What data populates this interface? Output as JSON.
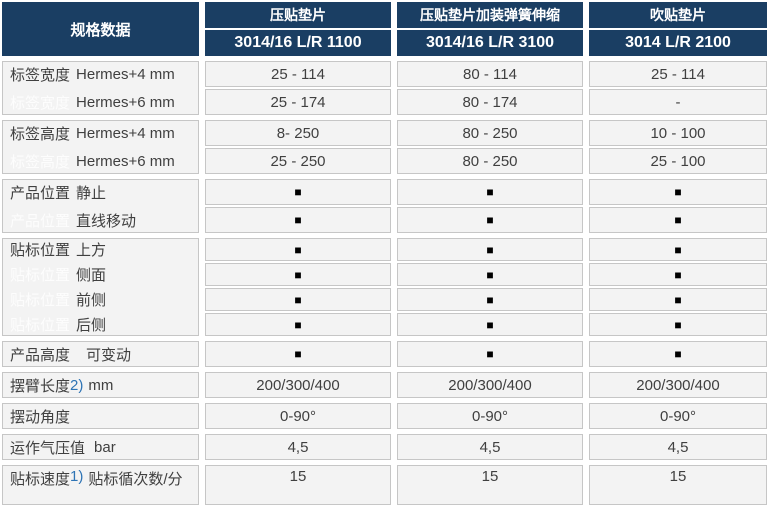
{
  "colors": {
    "header-bg": "#1a3e63",
    "cell-bg": "#f3f3f3",
    "cell-border": "#c6c6c6",
    "text": "#404040",
    "ghost": "#fdfdfd",
    "footnote": "#2e74b5",
    "square": "#000000"
  },
  "header": {
    "spec_label": "规格数据",
    "columns": [
      {
        "product": "压贴垫片",
        "model": "3014/16 L/R 1100"
      },
      {
        "product": "压贴垫片加装弹簧伸缩",
        "model": "3014/16 L/R 3100"
      },
      {
        "product": "吹贴垫片",
        "model": "3014 L/R 2100"
      }
    ]
  },
  "square_glyph": "■",
  "groups": [
    {
      "name": "label-width",
      "rows": [
        {
          "category": "标签宽度",
          "ghost": false,
          "rest": "Hermes+4 mm",
          "values": [
            "25 - 114",
            "80 - 114",
            "25 - 114"
          ]
        },
        {
          "category": "标签宽度",
          "ghost": true,
          "rest": "Hermes+6 mm",
          "values": [
            "25 - 174",
            "80 - 174",
            "-"
          ]
        }
      ]
    },
    {
      "name": "label-height",
      "rows": [
        {
          "category": "标签高度",
          "ghost": false,
          "rest": "Hermes+4 mm",
          "values": [
            "8- 250",
            "80 - 250",
            "10 - 100"
          ]
        },
        {
          "category": "标签高度",
          "ghost": true,
          "rest": "Hermes+6 mm",
          "values": [
            "25 - 250",
            "80 - 250",
            "25 - 100"
          ]
        }
      ]
    },
    {
      "name": "product-position",
      "rows": [
        {
          "category": "产品位置",
          "ghost": false,
          "rest": "静止",
          "values": [
            "■",
            "■",
            "■"
          ]
        },
        {
          "category": "产品位置",
          "ghost": true,
          "rest": "直线移动",
          "values": [
            "■",
            "■",
            "■"
          ]
        }
      ]
    },
    {
      "name": "labelling-position",
      "compact": true,
      "rows": [
        {
          "category": "贴标位置",
          "ghost": false,
          "rest": "上方",
          "values": [
            "■",
            "■",
            "■"
          ]
        },
        {
          "category": "贴标位置",
          "ghost": true,
          "rest": "侧面",
          "values": [
            "■",
            "■",
            "■"
          ]
        },
        {
          "category": "贴标位置",
          "ghost": true,
          "rest": "前侧",
          "values": [
            "■",
            "■",
            "■"
          ]
        },
        {
          "category": "贴标位置",
          "ghost": true,
          "rest": "后侧",
          "values": [
            "■",
            "■",
            "■"
          ]
        }
      ]
    },
    {
      "name": "product-height",
      "rows": [
        {
          "category": "产品高度",
          "ghost": false,
          "wide": true,
          "rest": "可变动",
          "values": [
            "■",
            "■",
            "■"
          ]
        }
      ]
    },
    {
      "name": "arm-length",
      "rows": [
        {
          "category": "摆臂长度",
          "ghost": false,
          "footnote": "2)",
          "rest": "mm",
          "values": [
            "200/300/400",
            "200/300/400",
            "200/300/400"
          ]
        }
      ]
    },
    {
      "name": "swing-angle",
      "rows": [
        {
          "category": "摆动角度",
          "ghost": false,
          "rest": "",
          "values": [
            "0-90°",
            "0-90°",
            "0-90°"
          ]
        }
      ]
    },
    {
      "name": "air-pressure",
      "rows": [
        {
          "category": "运作气压值",
          "ghost": false,
          "bar": true,
          "rest": "bar",
          "values": [
            "4,5",
            "4,5",
            "4,5"
          ]
        }
      ]
    },
    {
      "name": "labelling-speed",
      "tall": true,
      "rows": [
        {
          "category": "贴标速度",
          "ghost": false,
          "footnote": "1)",
          "rest": "贴标循次数/分",
          "values": [
            "15",
            "15",
            "15"
          ]
        }
      ]
    }
  ]
}
